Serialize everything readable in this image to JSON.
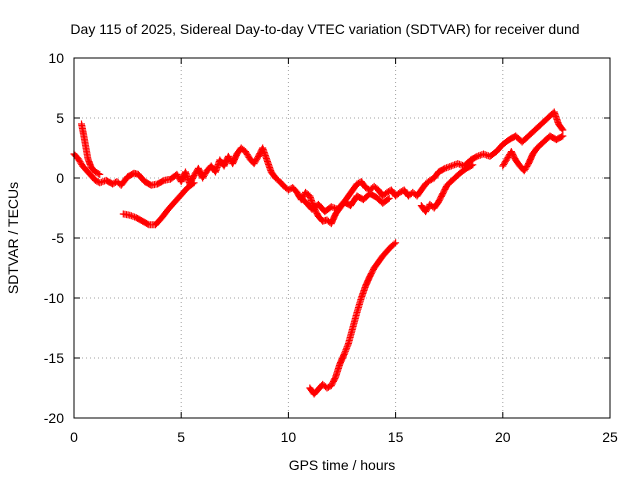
{
  "chart_data": {
    "type": "scatter",
    "title": "Day 115 of 2025, Sidereal Day-to-day VTEC variation (SDTVAR) for receiver dund",
    "xlabel": "GPS time / hours",
    "ylabel": "SDTVAR / TECUs",
    "xlim": [
      0,
      25
    ],
    "ylim": [
      -20,
      10
    ],
    "xticks": [
      0,
      5,
      10,
      15,
      20,
      25
    ],
    "yticks": [
      -20,
      -15,
      -10,
      -5,
      0,
      5,
      10
    ],
    "xtick_labels": [
      "0",
      "5",
      "10",
      "15",
      "20",
      "25"
    ],
    "ytick_labels": [
      "-20",
      "-15",
      "-10",
      "-5",
      "0",
      "5",
      "10"
    ],
    "grid": true,
    "marker": "plus",
    "color": "#ff0000",
    "series": [
      {
        "name": "main trace",
        "points": [
          [
            0.0,
            2.0
          ],
          [
            0.2,
            1.6
          ],
          [
            0.4,
            1.0
          ],
          [
            0.6,
            0.6
          ],
          [
            0.8,
            0.2
          ],
          [
            1.0,
            -0.2
          ],
          [
            1.2,
            -0.4
          ],
          [
            1.5,
            -0.2
          ],
          [
            1.8,
            -0.5
          ],
          [
            2.0,
            -0.3
          ],
          [
            2.2,
            -0.6
          ],
          [
            2.5,
            0.1
          ],
          [
            2.8,
            0.4
          ],
          [
            3.0,
            0.3
          ],
          [
            3.3,
            -0.3
          ],
          [
            3.6,
            -0.6
          ],
          [
            3.9,
            -0.5
          ],
          [
            4.2,
            -0.2
          ],
          [
            4.5,
            -0.1
          ],
          [
            4.8,
            0.3
          ],
          [
            5.0,
            -0.3
          ],
          [
            5.2,
            0.5
          ],
          [
            5.4,
            -0.5
          ],
          [
            5.6,
            0.2
          ],
          [
            5.8,
            0.8
          ],
          [
            6.0,
            0.0
          ],
          [
            6.2,
            0.6
          ],
          [
            6.4,
            1.0
          ],
          [
            6.6,
            0.5
          ],
          [
            6.8,
            1.5
          ],
          [
            7.0,
            1.0
          ],
          [
            7.2,
            1.8
          ],
          [
            7.4,
            1.2
          ],
          [
            7.6,
            2.0
          ],
          [
            7.8,
            2.5
          ],
          [
            8.0,
            2.2
          ],
          [
            8.2,
            1.6
          ],
          [
            8.4,
            1.2
          ],
          [
            8.6,
            1.8
          ],
          [
            8.8,
            2.5
          ],
          [
            9.0,
            1.5
          ],
          [
            9.2,
            0.5
          ],
          [
            9.4,
            0.0
          ],
          [
            9.6,
            -0.3
          ],
          [
            9.8,
            -0.7
          ],
          [
            10.0,
            -1.0
          ],
          [
            10.2,
            -0.8
          ],
          [
            10.4,
            -1.2
          ],
          [
            10.6,
            -1.8
          ],
          [
            10.8,
            -1.2
          ],
          [
            11.0,
            -1.5
          ],
          [
            11.2,
            -2.5
          ],
          [
            11.4,
            -3.2
          ],
          [
            11.6,
            -3.6
          ],
          [
            11.8,
            -3.5
          ],
          [
            12.0,
            -3.8
          ],
          [
            12.2,
            -3.0
          ],
          [
            12.4,
            -2.5
          ],
          [
            12.6,
            -2.0
          ],
          [
            12.8,
            -1.5
          ],
          [
            13.0,
            -1.0
          ],
          [
            13.2,
            -0.5
          ],
          [
            13.4,
            -0.3
          ],
          [
            13.6,
            -0.8
          ],
          [
            13.8,
            -1.0
          ],
          [
            14.0,
            -0.7
          ],
          [
            14.2,
            -1.0
          ],
          [
            14.4,
            -1.5
          ],
          [
            14.6,
            -1.2
          ],
          [
            14.8,
            -1.0
          ],
          [
            15.0,
            -1.5
          ],
          [
            15.2,
            -1.2
          ],
          [
            15.4,
            -1.0
          ],
          [
            15.6,
            -1.5
          ],
          [
            15.8,
            -1.2
          ],
          [
            16.0,
            -1.5
          ],
          [
            16.2,
            -1.0
          ],
          [
            16.4,
            -0.5
          ],
          [
            16.6,
            -0.2
          ],
          [
            16.8,
            0.0
          ],
          [
            17.0,
            0.5
          ],
          [
            17.3,
            0.8
          ],
          [
            17.6,
            1.0
          ],
          [
            17.9,
            1.2
          ],
          [
            18.2,
            1.0
          ],
          [
            18.5,
            1.5
          ],
          [
            18.8,
            1.8
          ],
          [
            19.1,
            2.0
          ],
          [
            19.4,
            1.8
          ],
          [
            19.7,
            2.2
          ],
          [
            20.0,
            2.8
          ],
          [
            20.3,
            3.2
          ],
          [
            20.6,
            3.5
          ],
          [
            20.9,
            3.0
          ],
          [
            21.2,
            3.5
          ],
          [
            21.5,
            4.0
          ],
          [
            21.8,
            4.5
          ],
          [
            22.1,
            5.0
          ],
          [
            22.4,
            5.5
          ],
          [
            22.6,
            4.5
          ],
          [
            22.8,
            4.0
          ]
        ]
      },
      {
        "name": "early spike",
        "points": [
          [
            0.35,
            4.5
          ],
          [
            0.45,
            3.6
          ],
          [
            0.55,
            2.6
          ],
          [
            0.65,
            1.6
          ],
          [
            0.8,
            0.9
          ],
          [
            1.0,
            0.5
          ],
          [
            1.2,
            0.3
          ]
        ]
      },
      {
        "name": "lower branch",
        "points": [
          [
            2.3,
            -3.0
          ],
          [
            2.6,
            -3.1
          ],
          [
            2.9,
            -3.3
          ],
          [
            3.2,
            -3.6
          ],
          [
            3.5,
            -3.9
          ],
          [
            3.8,
            -3.9
          ],
          [
            4.1,
            -3.3
          ],
          [
            4.4,
            -2.6
          ],
          [
            4.7,
            -2.0
          ],
          [
            5.0,
            -1.4
          ],
          [
            5.3,
            -0.8
          ],
          [
            5.6,
            -0.4
          ]
        ]
      },
      {
        "name": "afternoon mid branch",
        "points": [
          [
            10.5,
            -1.5
          ],
          [
            10.8,
            -2.0
          ],
          [
            11.1,
            -2.6
          ],
          [
            11.4,
            -2.2
          ],
          [
            11.7,
            -2.8
          ],
          [
            12.0,
            -2.4
          ],
          [
            12.3,
            -2.6
          ],
          [
            12.6,
            -2.0
          ],
          [
            12.9,
            -2.3
          ],
          [
            13.2,
            -1.5
          ],
          [
            13.5,
            -1.8
          ],
          [
            13.8,
            -1.3
          ],
          [
            14.1,
            -1.6
          ],
          [
            14.4,
            -2.1
          ],
          [
            14.7,
            -1.7
          ]
        ]
      },
      {
        "name": "evening dip branch",
        "points": [
          [
            16.2,
            -2.3
          ],
          [
            16.4,
            -2.8
          ],
          [
            16.6,
            -2.2
          ],
          [
            16.8,
            -2.5
          ],
          [
            17.0,
            -2.0
          ],
          [
            17.2,
            -1.3
          ],
          [
            17.4,
            -0.6
          ],
          [
            17.7,
            -0.1
          ],
          [
            18.0,
            0.4
          ],
          [
            18.3,
            0.8
          ],
          [
            18.6,
            1.1
          ]
        ]
      },
      {
        "name": "late branch",
        "points": [
          [
            20.0,
            1.0
          ],
          [
            20.2,
            1.6
          ],
          [
            20.4,
            2.2
          ],
          [
            20.6,
            1.5
          ],
          [
            20.8,
            1.0
          ],
          [
            21.0,
            0.6
          ],
          [
            21.2,
            1.2
          ],
          [
            21.4,
            2.0
          ],
          [
            21.6,
            2.5
          ],
          [
            21.9,
            3.0
          ],
          [
            22.2,
            3.5
          ],
          [
            22.5,
            3.2
          ],
          [
            22.8,
            3.5
          ]
        ]
      },
      {
        "name": "deep negative segment",
        "points": [
          [
            11.0,
            -17.5
          ],
          [
            11.2,
            -18.0
          ],
          [
            11.4,
            -17.6
          ],
          [
            11.6,
            -17.2
          ],
          [
            11.8,
            -17.5
          ],
          [
            12.0,
            -17.3
          ],
          [
            12.2,
            -16.6
          ],
          [
            12.4,
            -15.5
          ],
          [
            12.6,
            -14.7
          ],
          [
            12.8,
            -13.8
          ],
          [
            13.0,
            -12.5
          ],
          [
            13.2,
            -11.2
          ],
          [
            13.4,
            -10.0
          ],
          [
            13.6,
            -9.0
          ],
          [
            13.8,
            -8.2
          ],
          [
            14.0,
            -7.5
          ],
          [
            14.2,
            -7.0
          ],
          [
            14.4,
            -6.5
          ],
          [
            14.6,
            -6.1
          ],
          [
            14.8,
            -5.7
          ],
          [
            15.0,
            -5.4
          ]
        ]
      }
    ]
  }
}
